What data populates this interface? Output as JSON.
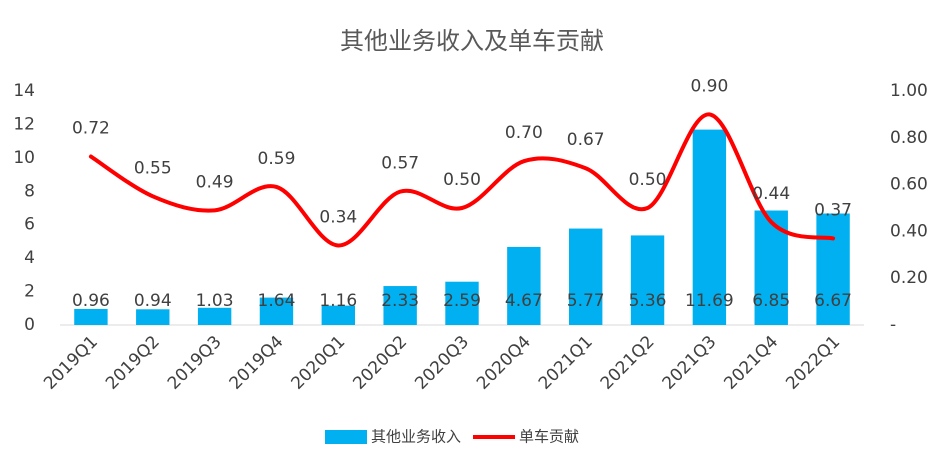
{
  "chart_data": {
    "type": "bar",
    "title": "其他业务收入及单车贡献",
    "categories": [
      "2019Q1",
      "2019Q2",
      "2019Q3",
      "2019Q4",
      "2020Q1",
      "2020Q2",
      "2020Q3",
      "2020Q4",
      "2021Q1",
      "2021Q2",
      "2021Q3",
      "2021Q4",
      "2022Q1"
    ],
    "series": [
      {
        "name": "其他业务收入",
        "type": "bar",
        "color": "#00b0f0",
        "values": [
          0.96,
          0.94,
          1.03,
          1.64,
          1.16,
          2.33,
          2.59,
          4.67,
          5.77,
          5.36,
          11.69,
          6.85,
          6.67
        ]
      },
      {
        "name": "单车贡献",
        "type": "line",
        "axis": "y2",
        "color": "#ff0000",
        "values": [
          0.72,
          0.55,
          0.49,
          0.59,
          0.34,
          0.57,
          0.5,
          0.7,
          0.67,
          0.5,
          0.9,
          0.44,
          0.37
        ],
        "value_labels": [
          "0.72",
          "0.55",
          "0.49",
          "0.59",
          "0.34",
          "0.57",
          "0.50",
          "0.70",
          "0.67",
          "0.50",
          "0.90",
          "0.44",
          "0.37"
        ]
      }
    ],
    "ylim": [
      0,
      14
    ],
    "yticks": [
      0,
      2,
      4,
      6,
      8,
      10,
      12,
      14
    ],
    "y2lim": [
      0,
      1
    ],
    "y2ticks": [
      {
        "value": 0,
        "label": "-"
      },
      {
        "value": 0.2,
        "label": "0.20"
      },
      {
        "value": 0.4,
        "label": "0.40"
      },
      {
        "value": 0.6,
        "label": "0.60"
      },
      {
        "value": 0.8,
        "label": "0.80"
      },
      {
        "value": 1,
        "label": "1.00"
      }
    ],
    "legend": "bottom"
  }
}
